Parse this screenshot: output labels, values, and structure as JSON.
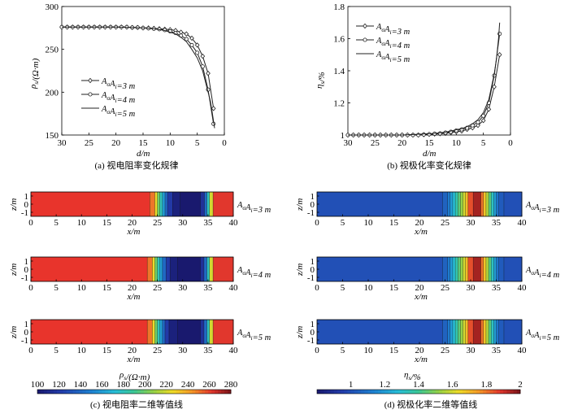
{
  "chart_data": [
    {
      "id": "a",
      "type": "line",
      "caption": "(a) 视电阻率变化规律",
      "xlabel": "d/m",
      "ylabel": "ρs/(Ω·m)",
      "xlim": [
        30,
        0
      ],
      "ylim": [
        150,
        300
      ],
      "xticks": [
        "30",
        "25",
        "20",
        "15",
        "10",
        "5",
        "0"
      ],
      "yticks": [
        "150",
        "200",
        "250",
        "300"
      ],
      "series": [
        {
          "name": "AσAi=3 m",
          "marker": "diamond",
          "x": [
            30,
            29,
            28,
            27,
            26,
            25,
            24,
            23,
            22,
            21,
            20,
            19,
            18,
            17,
            16,
            15,
            14,
            13,
            12,
            11,
            10,
            9,
            8,
            7,
            6,
            5,
            4,
            3,
            2
          ],
          "y": [
            276,
            276,
            276,
            276,
            276,
            276,
            276,
            276,
            276,
            276,
            276,
            276,
            276,
            275.5,
            275.5,
            275,
            275,
            274.5,
            274,
            273.5,
            273,
            272,
            270,
            268,
            263,
            255,
            242,
            222,
            181
          ]
        },
        {
          "name": "AσAi=4 m",
          "marker": "circle",
          "x": [
            30,
            29,
            28,
            27,
            26,
            25,
            24,
            23,
            22,
            21,
            20,
            19,
            18,
            17,
            16,
            15,
            14,
            13,
            12,
            11,
            10,
            9,
            8,
            7,
            6,
            5,
            4,
            3,
            2
          ],
          "y": [
            276,
            276,
            276,
            276,
            276,
            276,
            276,
            276,
            276,
            276,
            276,
            276,
            276,
            275.5,
            275.5,
            275,
            274.5,
            274,
            273.5,
            272.5,
            271,
            269,
            266,
            262,
            255,
            246,
            230,
            203,
            163
          ]
        },
        {
          "name": "AσAi=5 m",
          "marker": "none",
          "x": [
            30,
            25,
            20,
            15,
            14,
            13,
            12,
            11,
            10,
            9,
            8,
            7,
            6,
            5,
            4,
            3,
            2.6,
            2.2,
            1.8
          ],
          "y": [
            276,
            276,
            276,
            275,
            274.5,
            274,
            273,
            272,
            270,
            268,
            264,
            259,
            250,
            240,
            225,
            200,
            190,
            175,
            158
          ]
        }
      ],
      "legend_position": "left"
    },
    {
      "id": "b",
      "type": "line",
      "caption": "(b) 视极化率变化规律",
      "xlabel": "d/m",
      "ylabel": "ηs/%",
      "xlim": [
        30,
        0
      ],
      "ylim": [
        1,
        1.8
      ],
      "xticks": [
        "30",
        "25",
        "20",
        "15",
        "10",
        "5",
        "0"
      ],
      "yticks": [
        "1",
        "1.2",
        "1.4",
        "1.6",
        "1.8"
      ],
      "series": [
        {
          "name": "AσAi=3 m",
          "marker": "diamond",
          "x": [
            30,
            29,
            28,
            27,
            26,
            25,
            24,
            23,
            22,
            21,
            20,
            19,
            18,
            17,
            16,
            15,
            14,
            13,
            12,
            11,
            10,
            9,
            8,
            7,
            6,
            5,
            4,
            3,
            2
          ],
          "y": [
            1,
            1,
            1,
            1,
            1,
            1,
            1,
            1,
            1,
            1,
            1,
            1,
            1,
            1,
            1.002,
            1.004,
            1.006,
            1.008,
            1.01,
            1.015,
            1.02,
            1.025,
            1.035,
            1.045,
            1.06,
            1.09,
            1.16,
            1.3,
            1.5
          ]
        },
        {
          "name": "AσAi=4 m",
          "marker": "circle",
          "x": [
            30,
            29,
            28,
            27,
            26,
            25,
            24,
            23,
            22,
            21,
            20,
            19,
            18,
            17,
            16,
            15,
            14,
            13,
            12,
            11,
            10,
            9,
            8,
            7,
            6,
            5,
            4,
            3,
            2
          ],
          "y": [
            1,
            1,
            1,
            1,
            1,
            1,
            1,
            1,
            1,
            1,
            1,
            1,
            1,
            1,
            1.003,
            1.005,
            1.008,
            1.01,
            1.015,
            1.02,
            1.028,
            1.035,
            1.045,
            1.06,
            1.08,
            1.12,
            1.2,
            1.37,
            1.63
          ]
        },
        {
          "name": "AσAi=5 m",
          "marker": "none",
          "x": [
            30,
            25,
            20,
            15,
            14,
            13,
            12,
            11,
            10,
            9,
            8,
            7,
            6,
            5,
            4,
            3,
            2.6,
            2.2,
            2
          ],
          "y": [
            1,
            1,
            1,
            1.008,
            1.01,
            1.014,
            1.018,
            1.025,
            1.033,
            1.04,
            1.052,
            1.07,
            1.095,
            1.14,
            1.22,
            1.38,
            1.47,
            1.6,
            1.7
          ]
        }
      ],
      "legend_position": "top-left"
    },
    {
      "id": "c",
      "type": "heatmap",
      "caption": "(c) 视电阻率二维等值线",
      "xlabel": "x/m",
      "ylabel": "z/m",
      "xlim": [
        0,
        40
      ],
      "ylim": [
        -1.5,
        1.5
      ],
      "xticks": [
        "0",
        "5",
        "10",
        "15",
        "20",
        "25",
        "30",
        "35",
        "40"
      ],
      "yticks": [
        "1",
        "0",
        "-1"
      ],
      "panel_labels": [
        "AσAi=3 m",
        "AσAi=4 m",
        "AσAi=5 m"
      ],
      "colorbar_label": "ρs/(Ω·m)",
      "colorbar_range": [
        100,
        280
      ],
      "colorbar_ticks": [
        "100",
        "120",
        "140",
        "160",
        "180",
        "200",
        "220",
        "240",
        "260",
        "280"
      ],
      "profiles": [
        {
          "band_starts": [
            0,
            23.5,
            24.5,
            25,
            25.5,
            26,
            26.5,
            27,
            28,
            29.5,
            33.5,
            34.3,
            34.8,
            35.3,
            36
          ],
          "band_values": [
            276,
            250,
            225,
            200,
            180,
            160,
            140,
            120,
            105,
            100,
            115,
            140,
            180,
            220,
            262
          ]
        },
        {
          "band_starts": [
            0,
            23,
            24,
            24.5,
            25,
            25.5,
            26,
            26.7,
            27.5,
            29,
            33.5,
            34.2,
            34.8,
            35.3,
            36
          ],
          "band_values": [
            276,
            250,
            225,
            200,
            180,
            160,
            140,
            120,
            105,
            100,
            115,
            140,
            180,
            220,
            262
          ]
        },
        {
          "band_starts": [
            0,
            23,
            24,
            24.5,
            25,
            25.5,
            26,
            26.5,
            27.3,
            29,
            33.5,
            34.2,
            34.8,
            35.3,
            36
          ],
          "band_values": [
            276,
            250,
            225,
            200,
            180,
            160,
            140,
            120,
            105,
            100,
            115,
            140,
            180,
            220,
            262
          ]
        }
      ]
    },
    {
      "id": "d",
      "type": "heatmap",
      "caption": "(d) 视极化率二维等值线",
      "xlabel": "x/m",
      "ylabel": "z/m",
      "xlim": [
        0,
        40
      ],
      "ylim": [
        -1.5,
        1.5
      ],
      "xticks": [
        "0",
        "5",
        "10",
        "15",
        "20",
        "25",
        "30",
        "35",
        "40"
      ],
      "yticks": [
        "1",
        "0",
        "-1"
      ],
      "panel_labels": [
        "AσAi=3 m",
        "AσAi=4 m",
        "AσAi=5 m"
      ],
      "colorbar_label": "ηs/%",
      "colorbar_range": [
        0.8,
        2
      ],
      "colorbar_ticks": [
        "1",
        "1.2",
        "1.4",
        "1.6",
        "1.8",
        "2"
      ],
      "profiles": [
        {
          "band_starts": [
            0,
            24.5,
            25.5,
            26,
            26.5,
            27,
            27.5,
            28,
            28.5,
            29,
            29.5,
            30.5,
            32,
            32.5,
            33,
            33.5,
            34,
            34.5,
            35,
            35.5,
            36.5
          ],
          "band_values": [
            1.0,
            1.05,
            1.12,
            1.2,
            1.28,
            1.36,
            1.44,
            1.52,
            1.6,
            1.7,
            1.85,
            1.95,
            1.8,
            1.68,
            1.56,
            1.44,
            1.32,
            1.2,
            1.1,
            1.03,
            1.0
          ]
        },
        {
          "band_starts": [
            0,
            24.5,
            25.5,
            26,
            26.5,
            27,
            27.5,
            28,
            28.5,
            29,
            29.5,
            30.5,
            32,
            32.5,
            33,
            33.5,
            34,
            34.5,
            35,
            35.5,
            36.5
          ],
          "band_values": [
            1.0,
            1.05,
            1.12,
            1.2,
            1.28,
            1.36,
            1.44,
            1.52,
            1.6,
            1.7,
            1.85,
            1.95,
            1.8,
            1.68,
            1.56,
            1.44,
            1.32,
            1.2,
            1.1,
            1.03,
            1.0
          ]
        },
        {
          "band_starts": [
            0,
            24.5,
            25.5,
            26,
            26.5,
            27,
            27.5,
            28,
            28.5,
            29,
            29.5,
            30.5,
            32,
            32.5,
            33,
            33.5,
            34,
            34.5,
            35,
            35.5,
            36.5
          ],
          "band_values": [
            1.0,
            1.05,
            1.12,
            1.2,
            1.28,
            1.36,
            1.44,
            1.52,
            1.6,
            1.7,
            1.85,
            1.95,
            1.8,
            1.68,
            1.56,
            1.44,
            1.32,
            1.2,
            1.1,
            1.03,
            1.0
          ]
        }
      ]
    }
  ]
}
